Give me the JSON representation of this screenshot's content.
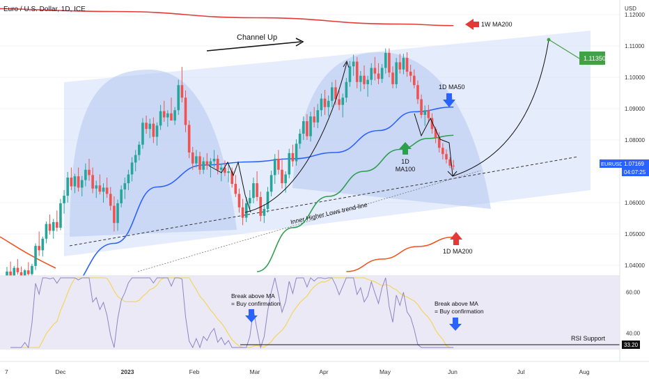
{
  "header": {
    "symbol_title": "Euro / U.S. Dollar, 1D, ICE",
    "currency": "USD"
  },
  "price_scale": {
    "ticks": [
      "1.12000",
      "1.11000",
      "1.10000",
      "1.09000",
      "1.08000",
      "1.06000",
      "1.05000",
      "1.04000"
    ],
    "current_label": "EURUSD",
    "current_price": "1.07169",
    "countdown": "04:07:25",
    "target_badge": "1.11350"
  },
  "rsi_scale": {
    "ticks": [
      "60.00",
      "40.00"
    ],
    "support_badge": "33.20"
  },
  "time_axis": {
    "labels": [
      "7",
      "Dec",
      "2023",
      "Feb",
      "Mar",
      "Apr",
      "May",
      "Jun",
      "Jul",
      "Aug"
    ]
  },
  "annotations": {
    "channel_up": "Channel Up",
    "ma200_weekly": "1W MA200",
    "ma50_daily": "1D MA50",
    "ma100_line1": "1D",
    "ma100_line2": "MA100",
    "ma200_daily": "1D MA200",
    "trendline": "Inner Higher Lows trend-line",
    "rsi_break1_line1": "Break above MA",
    "rsi_break1_line2": "= Buy confirmation",
    "rsi_break2_line1": "Break above MA",
    "rsi_break2_line2": "= Buy confirmation",
    "rsi_support": "RSI Support"
  },
  "colors": {
    "bull": "#26a69a",
    "bear": "#ef5350",
    "ma50": "#2962ff",
    "ma100": "#2e9e4f",
    "ma200_daily": "#f4511e",
    "ma200_weekly": "#e53935",
    "channel": "#cfdcf7",
    "rsi_line": "#8c84c4",
    "rsi_ma": "#f2d65a",
    "badge_green": "#43a047"
  },
  "chart_data": {
    "type": "candlestick",
    "symbol": "EURUSD",
    "timeframe": "1D",
    "y_range": [
      1.038,
      1.122
    ],
    "candles_ohlc": [
      [
        1.036,
        1.0395,
        1.033,
        1.038
      ],
      [
        1.038,
        1.0412,
        1.035,
        1.0365
      ],
      [
        1.0365,
        1.0398,
        1.034,
        1.0392
      ],
      [
        1.0392,
        1.042,
        1.037,
        1.0378
      ],
      [
        1.0378,
        1.0396,
        1.0345,
        1.0352
      ],
      [
        1.0352,
        1.0388,
        1.033,
        1.0384
      ],
      [
        1.0384,
        1.041,
        1.036,
        1.0372
      ],
      [
        1.0372,
        1.0405,
        1.0358,
        1.0398
      ],
      [
        1.0398,
        1.047,
        1.0385,
        1.0462
      ],
      [
        1.0462,
        1.0508,
        1.043,
        1.0448
      ],
      [
        1.0448,
        1.0492,
        1.0428,
        1.0485
      ],
      [
        1.0485,
        1.054,
        1.047,
        1.0532
      ],
      [
        1.0532,
        1.0562,
        1.0498,
        1.051
      ],
      [
        1.051,
        1.0548,
        1.0485,
        1.0538
      ],
      [
        1.0538,
        1.0575,
        1.0508,
        1.052
      ],
      [
        1.052,
        1.0612,
        1.0512,
        1.0598
      ],
      [
        1.0598,
        1.064,
        1.0565,
        1.0622
      ],
      [
        1.0622,
        1.0698,
        1.06,
        1.068
      ],
      [
        1.068,
        1.0712,
        1.064,
        1.0652
      ],
      [
        1.0652,
        1.0692,
        1.063,
        1.0684
      ],
      [
        1.0684,
        1.0712,
        1.0635,
        1.0648
      ],
      [
        1.0648,
        1.0685,
        1.062,
        1.0672
      ],
      [
        1.0672,
        1.0725,
        1.0652,
        1.0705
      ],
      [
        1.0705,
        1.074,
        1.067,
        1.0688
      ],
      [
        1.0688,
        1.0712,
        1.063,
        1.0645
      ],
      [
        1.0645,
        1.067,
        1.0615,
        1.0655
      ],
      [
        1.0655,
        1.069,
        1.0626,
        1.0635
      ],
      [
        1.0635,
        1.0662,
        1.06,
        1.0648
      ],
      [
        1.0648,
        1.068,
        1.0615,
        1.0628
      ],
      [
        1.0628,
        1.065,
        1.0575,
        1.059
      ],
      [
        1.059,
        1.062,
        1.0508,
        1.0535
      ],
      [
        1.0535,
        1.061,
        1.051,
        1.0598
      ],
      [
        1.0598,
        1.0655,
        1.0585,
        1.0642
      ],
      [
        1.0642,
        1.068,
        1.0612,
        1.0662
      ],
      [
        1.0662,
        1.0705,
        1.064,
        1.069
      ],
      [
        1.069,
        1.0745,
        1.0668,
        1.0728
      ],
      [
        1.0728,
        1.0768,
        1.07,
        1.0752
      ],
      [
        1.0752,
        1.0795,
        1.0735,
        1.0785
      ],
      [
        1.0785,
        1.087,
        1.0772,
        1.0855
      ],
      [
        1.0855,
        1.0878,
        1.082,
        1.0835
      ],
      [
        1.0835,
        1.0868,
        1.0806,
        1.0852
      ],
      [
        1.0852,
        1.0872,
        1.079,
        1.081
      ],
      [
        1.081,
        1.0856,
        1.0782,
        1.0846
      ],
      [
        1.0846,
        1.0912,
        1.0832,
        1.0892
      ],
      [
        1.0892,
        1.0925,
        1.0858,
        1.0872
      ],
      [
        1.0872,
        1.0895,
        1.0842,
        1.0885
      ],
      [
        1.0885,
        1.0935,
        1.087,
        1.0862
      ],
      [
        1.0862,
        1.0905,
        1.0848,
        1.0895
      ],
      [
        1.0895,
        1.0992,
        1.088,
        1.0975
      ],
      [
        1.0975,
        1.1033,
        1.092,
        1.0935
      ],
      [
        1.0935,
        1.0958,
        1.0825,
        1.0848
      ],
      [
        1.0848,
        1.0862,
        1.0742,
        1.076
      ],
      [
        1.076,
        1.0778,
        1.0705,
        1.0725
      ],
      [
        1.0725,
        1.0768,
        1.0712,
        1.0748
      ],
      [
        1.0748,
        1.0762,
        1.069,
        1.0705
      ],
      [
        1.0705,
        1.0745,
        1.0692,
        1.0732
      ],
      [
        1.0732,
        1.0758,
        1.0705,
        1.0718
      ],
      [
        1.0718,
        1.0742,
        1.068,
        1.0732
      ],
      [
        1.0732,
        1.0768,
        1.0712,
        1.074
      ],
      [
        1.074,
        1.0752,
        1.069,
        1.0705
      ],
      [
        1.0705,
        1.0725,
        1.0668,
        1.0712
      ],
      [
        1.0712,
        1.0735,
        1.0685,
        1.0695
      ],
      [
        1.0695,
        1.0722,
        1.0665,
        1.07
      ],
      [
        1.07,
        1.0712,
        1.0648,
        1.066
      ],
      [
        1.066,
        1.0688,
        1.0618,
        1.0628
      ],
      [
        1.0628,
        1.0645,
        1.0568,
        1.0585
      ],
      [
        1.0585,
        1.0612,
        1.0528,
        1.0552
      ],
      [
        1.0552,
        1.0618,
        1.0538,
        1.0598
      ],
      [
        1.0598,
        1.064,
        1.058,
        1.0615
      ],
      [
        1.0615,
        1.068,
        1.0598,
        1.0662
      ],
      [
        1.0662,
        1.07,
        1.0605,
        1.0618
      ],
      [
        1.0618,
        1.0635,
        1.054,
        1.0558
      ],
      [
        1.0558,
        1.0595,
        1.0535,
        1.058
      ],
      [
        1.058,
        1.065,
        1.0568,
        1.0635
      ],
      [
        1.0635,
        1.0702,
        1.062,
        1.0688
      ],
      [
        1.0688,
        1.0755,
        1.066,
        1.074
      ],
      [
        1.074,
        1.0768,
        1.069,
        1.0705
      ],
      [
        1.0705,
        1.0742,
        1.0645,
        1.0662
      ],
      [
        1.0662,
        1.07,
        1.0632,
        1.069
      ],
      [
        1.069,
        1.0772,
        1.0678,
        1.0758
      ],
      [
        1.0758,
        1.0785,
        1.0715,
        1.0732
      ],
      [
        1.0732,
        1.0802,
        1.0718,
        1.0788
      ],
      [
        1.0788,
        1.0835,
        1.0772,
        1.082
      ],
      [
        1.082,
        1.0875,
        1.08,
        1.086
      ],
      [
        1.086,
        1.0882,
        1.08,
        1.0812
      ],
      [
        1.0812,
        1.089,
        1.0795,
        1.0875
      ],
      [
        1.0875,
        1.0905,
        1.084,
        1.0856
      ],
      [
        1.0856,
        1.0915,
        1.0838,
        1.0895
      ],
      [
        1.0895,
        1.0948,
        1.0875,
        1.0932
      ],
      [
        1.0932,
        1.096,
        1.088,
        1.0905
      ],
      [
        1.0905,
        1.0942,
        1.0875,
        1.0925
      ],
      [
        1.0925,
        1.0985,
        1.0905,
        1.0968
      ],
      [
        1.0968,
        1.0992,
        1.0912,
        1.093
      ],
      [
        1.093,
        1.0958,
        1.0895,
        1.0912
      ],
      [
        1.0912,
        1.0948,
        1.0872,
        1.0935
      ],
      [
        1.0935,
        1.0998,
        1.092,
        1.0985
      ],
      [
        1.0985,
        1.1052,
        1.097,
        1.1035
      ],
      [
        1.1035,
        1.1072,
        1.1005,
        1.105
      ],
      [
        1.105,
        1.1065,
        1.0965,
        1.0985
      ],
      [
        1.0985,
        1.102,
        1.0955,
        1.1005
      ],
      [
        1.1005,
        1.1038,
        1.0962,
        1.0978
      ],
      [
        1.0978,
        1.1005,
        1.0938,
        1.0992
      ],
      [
        1.0992,
        1.1045,
        1.0975,
        1.103
      ],
      [
        1.103,
        1.1065,
        1.099,
        1.1012
      ],
      [
        1.1012,
        1.1045,
        1.0978,
        1.0995
      ],
      [
        1.0995,
        1.1042,
        1.0982,
        1.103
      ],
      [
        1.103,
        1.1092,
        1.1012,
        1.1078
      ],
      [
        1.1078,
        1.1092,
        1.1,
        1.1015
      ],
      [
        1.1015,
        1.1035,
        1.0965,
        1.0978
      ],
      [
        1.0978,
        1.1062,
        1.0965,
        1.1048
      ],
      [
        1.1048,
        1.1075,
        1.1012,
        1.1025
      ],
      [
        1.1025,
        1.1075,
        1.101,
        1.1062
      ],
      [
        1.1062,
        1.108,
        1.1002,
        1.1018
      ],
      [
        1.1018,
        1.104,
        1.0985,
        1.1005
      ],
      [
        1.1005,
        1.1025,
        1.0965,
        1.0975
      ],
      [
        1.0975,
        1.099,
        1.0915,
        1.093
      ],
      [
        1.093,
        1.0945,
        1.087,
        1.088
      ],
      [
        1.088,
        1.091,
        1.0845,
        1.0895
      ],
      [
        1.0895,
        1.0912,
        1.0855,
        1.087
      ],
      [
        1.087,
        1.0885,
        1.082,
        1.0835
      ],
      [
        1.0835,
        1.0842,
        1.079,
        1.0808
      ],
      [
        1.0808,
        1.0825,
        1.076,
        1.0775
      ],
      [
        1.0775,
        1.079,
        1.0738,
        1.0755
      ],
      [
        1.0755,
        1.077,
        1.0725,
        1.0738
      ],
      [
        1.0738,
        1.0745,
        1.071,
        1.0718
      ],
      [
        1.0718,
        1.0736,
        1.0705,
        1.0717
      ]
    ],
    "moving_averages": [
      {
        "name": "1D MA50",
        "points": [
          [
            0,
            1.025
          ],
          [
            15,
            1.031
          ],
          [
            30,
            1.047
          ],
          [
            42,
            1.065
          ],
          [
            55,
            1.072
          ],
          [
            68,
            1.073
          ],
          [
            80,
            1.074
          ],
          [
            92,
            1.076
          ],
          [
            104,
            1.083
          ],
          [
            114,
            1.089
          ],
          [
            125,
            1.0905
          ]
        ]
      },
      {
        "name": "1D MA100",
        "points": [
          [
            70,
            1.038
          ],
          [
            80,
            1.052
          ],
          [
            90,
            1.062
          ],
          [
            100,
            1.07
          ],
          [
            110,
            1.077
          ],
          [
            118,
            1.0805
          ],
          [
            125,
            1.0815
          ]
        ]
      },
      {
        "name": "1D MA200",
        "points": [
          [
            95,
            1.038
          ],
          [
            105,
            1.042
          ],
          [
            115,
            1.046
          ],
          [
            125,
            1.049
          ]
        ]
      },
      {
        "name": "1W MA200",
        "points": [
          [
            -10,
            1.122
          ],
          [
            30,
            1.121
          ],
          [
            70,
            1.119
          ],
          [
            110,
            1.117
          ],
          [
            125,
            1.1165
          ]
        ]
      }
    ],
    "rsi": {
      "y_range": [
        32,
        68
      ],
      "support": 33.2,
      "levels": [
        40,
        60
      ]
    }
  }
}
